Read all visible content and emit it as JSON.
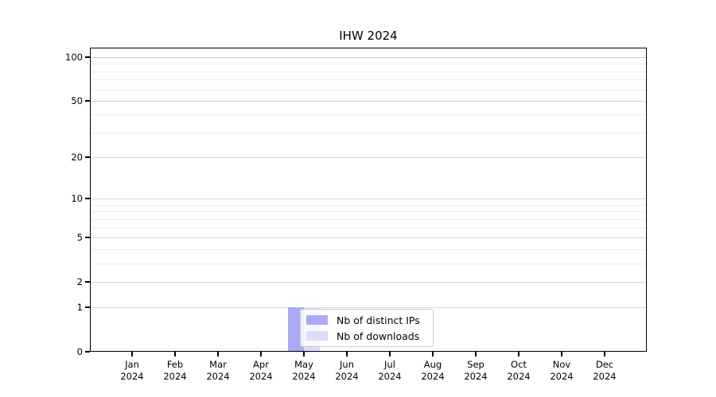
{
  "title": "IHW 2024",
  "chart_data": {
    "type": "bar",
    "title": "IHW 2024",
    "x_categories": [
      "Jan",
      "Feb",
      "Mar",
      "Apr",
      "May",
      "Jun",
      "Jul",
      "Aug",
      "Sep",
      "Oct",
      "Nov",
      "Dec"
    ],
    "x_year": "2024",
    "series": [
      {
        "name": "Nb of distinct IPs",
        "color": "#aaaaf6",
        "values": [
          0,
          0,
          0,
          0,
          1,
          0,
          0,
          0,
          0,
          0,
          0,
          0
        ]
      },
      {
        "name": "Nb of downloads",
        "color": "#dcdcf8",
        "values": [
          0,
          0,
          0,
          0,
          1,
          0,
          0,
          0,
          0,
          0,
          0,
          0
        ]
      }
    ],
    "yscale": "log1p",
    "ylim": [
      0,
      117
    ],
    "y_ticks": [
      0,
      1,
      2,
      5,
      10,
      20,
      50,
      100
    ],
    "y_minor_gridlines": [
      3,
      4,
      6,
      7,
      8,
      9,
      30,
      40,
      60,
      70,
      80,
      90
    ],
    "grid": true,
    "legend_position": "lower center"
  },
  "colors": {
    "grid_major": "#d4d4d4",
    "grid_top": "#c8c8c8",
    "grid_minor": "#ededed",
    "axis": "#000000",
    "legend_border": "#cccccc"
  }
}
